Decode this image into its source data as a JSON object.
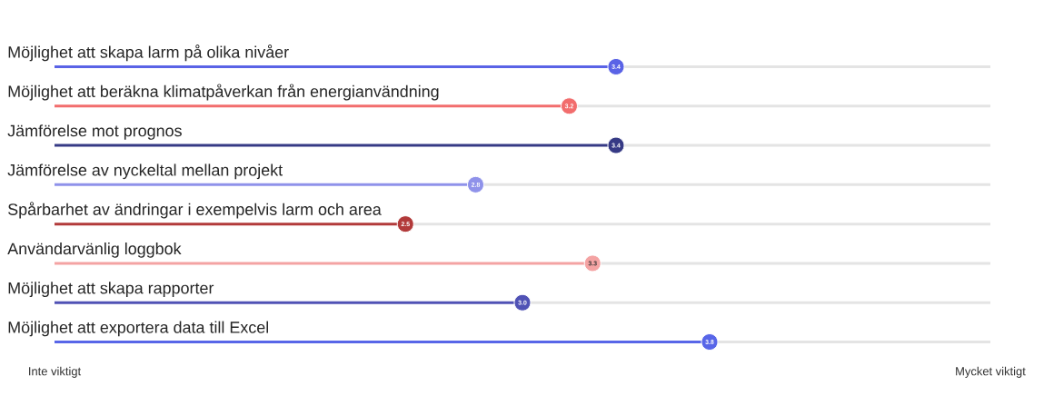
{
  "chart_data": {
    "type": "lollipop",
    "orientation": "horizontal",
    "categories": [
      "Möjlighet att skapa larm på olika nivåer",
      "Möjlighet att beräkna klimatpåverkan från energianvändning",
      "Jämförelse mot prognos",
      "Jämförelse av nyckeltal mellan projekt",
      "Spårbarhet av ändringar i exempelvis larm och area",
      "Användarvänlig loggbok",
      "Möjlighet att skapa rapporter",
      "Möjlighet att exportera data till Excel"
    ],
    "values": [
      3.4,
      3.2,
      3.4,
      2.8,
      2.5,
      3.3,
      3.0,
      3.8
    ],
    "colors": [
      "#5a63e6",
      "#f26d6d",
      "#363a85",
      "#8f92ea",
      "#b23a3a",
      "#f4a3a3",
      "#5052b5",
      "#5866e8"
    ],
    "annotations": [
      "Inte viktigt",
      "Mycket viktigt"
    ],
    "value_labels": [
      "3.4",
      "3.2",
      "3.4",
      "2.8",
      "2.5",
      "3.3",
      "3.0",
      "3.8"
    ],
    "xlim": [
      1,
      5
    ]
  }
}
